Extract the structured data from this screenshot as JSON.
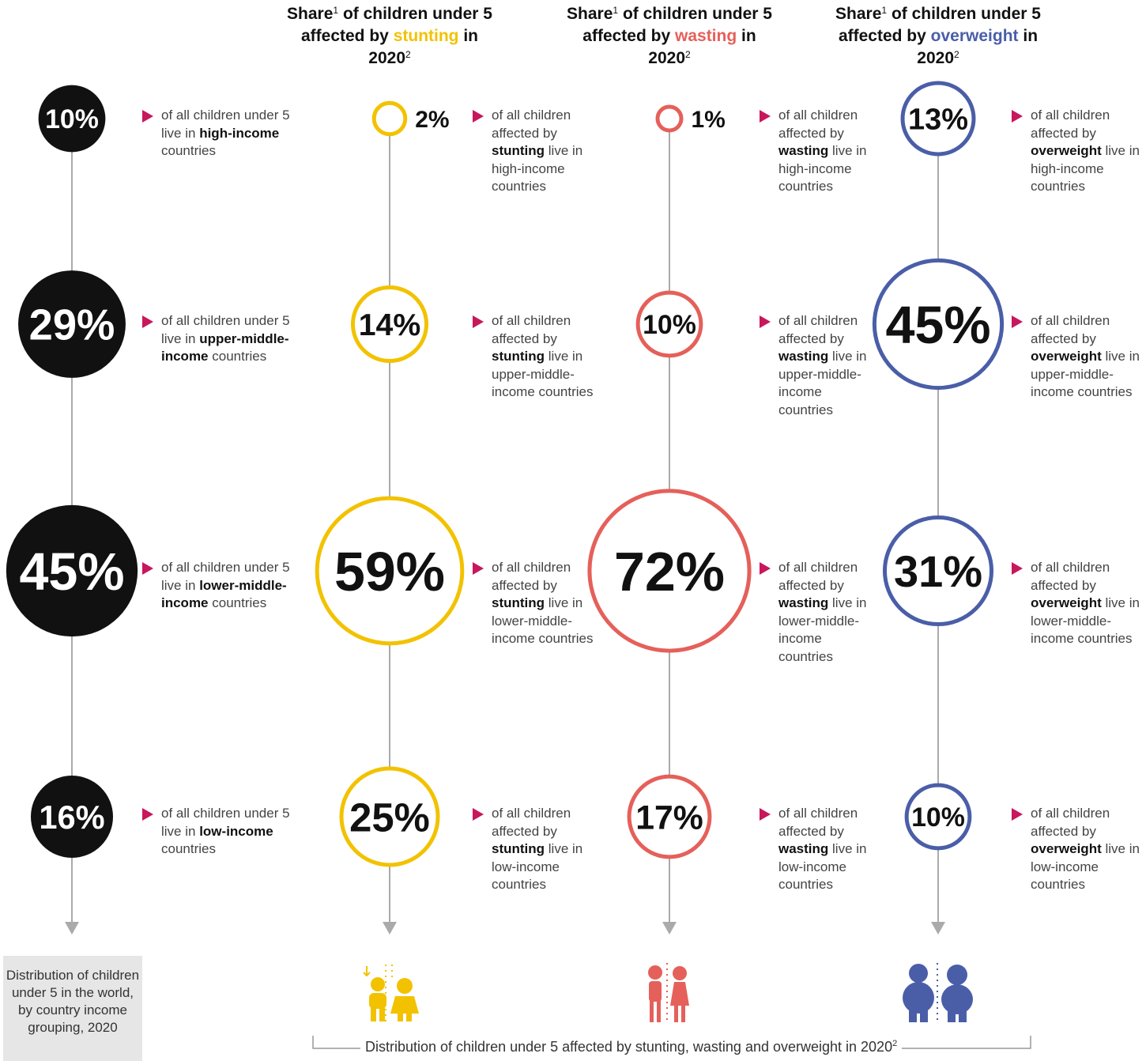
{
  "headers": [
    {
      "share": "Share",
      "note": "1",
      "text": "of children under 5 affected by",
      "keyword": "stunting",
      "year": "in 2020",
      "note2": "2"
    },
    {
      "share": "Share",
      "note": "1",
      "text": "of children under 5 affected by",
      "keyword": "wasting",
      "year": "in 2020",
      "note2": "2"
    },
    {
      "share": "Share",
      "note": "1",
      "text": "of children under 5 affected by",
      "keyword": "overweight",
      "year": "in 2020",
      "note2": "2"
    }
  ],
  "columns": [
    {
      "color": "#111111",
      "filled": true,
      "items": [
        {
          "value": 10,
          "value_label": "10%",
          "desc": [
            "of all children under 5 live in",
            "high-income",
            "countries"
          ]
        },
        {
          "value": 29,
          "value_label": "29%",
          "desc": [
            "of all children under 5 live in",
            "upper-middle-income",
            "countries"
          ]
        },
        {
          "value": 45,
          "value_label": "45%",
          "desc": [
            "of all children under 5 live in",
            "lower-middle-income",
            "countries"
          ]
        },
        {
          "value": 16,
          "value_label": "16%",
          "desc": [
            "of all children under 5 live in",
            "low-income",
            "countries"
          ]
        }
      ]
    },
    {
      "color": "#f2c200",
      "filled": false,
      "items": [
        {
          "value": 2,
          "value_label": "2%",
          "desc": [
            "of all children affected by",
            "stunting",
            "live in high-income countries"
          ]
        },
        {
          "value": 14,
          "value_label": "14%",
          "desc": [
            "of all children affected by",
            "stunting",
            "live in upper-middle-income countries"
          ]
        },
        {
          "value": 59,
          "value_label": "59%",
          "desc": [
            "of all children affected by",
            "stunting",
            "live in lower-middle-income countries"
          ]
        },
        {
          "value": 25,
          "value_label": "25%",
          "desc": [
            "of all children affected by",
            "stunting",
            "live in low-income countries"
          ]
        }
      ]
    },
    {
      "color": "#e5605a",
      "filled": false,
      "items": [
        {
          "value": 1,
          "value_label": "1%",
          "desc": [
            "of all children affected by",
            "wasting",
            "live in high-income countries"
          ]
        },
        {
          "value": 10,
          "value_label": "10%",
          "desc": [
            "of all children affected by",
            "wasting",
            "live in upper-middle-income countries"
          ]
        },
        {
          "value": 72,
          "value_label": "72%",
          "desc": [
            "of all children affected by",
            "wasting",
            "live in lower-middle-income countries"
          ]
        },
        {
          "value": 17,
          "value_label": "17%",
          "desc": [
            "of all children affected by",
            "wasting",
            "live in low-income countries"
          ]
        }
      ]
    },
    {
      "color": "#4a5ea8",
      "filled": false,
      "items": [
        {
          "value": 13,
          "value_label": "13%",
          "desc": [
            "of all children affected by",
            "overweight",
            "live in high-income countries"
          ]
        },
        {
          "value": 45,
          "value_label": "45%",
          "desc": [
            "of all children affected by",
            "overweight",
            "live in upper-middle-income countries"
          ]
        },
        {
          "value": 31,
          "value_label": "31%",
          "desc": [
            "of all children affected by",
            "overweight",
            "live in lower-middle-income countries"
          ]
        },
        {
          "value": 10,
          "value_label": "10%",
          "desc": [
            "of all children affected by",
            "overweight",
            "live in low-income countries"
          ]
        }
      ]
    }
  ],
  "footer_left": "Distribution of children under 5 in the world, by country income grouping, 2020",
  "footer_bottom": {
    "text": "Distribution of children under 5 affected by stunting, wasting and overweight in 2020",
    "note": "2"
  }
}
